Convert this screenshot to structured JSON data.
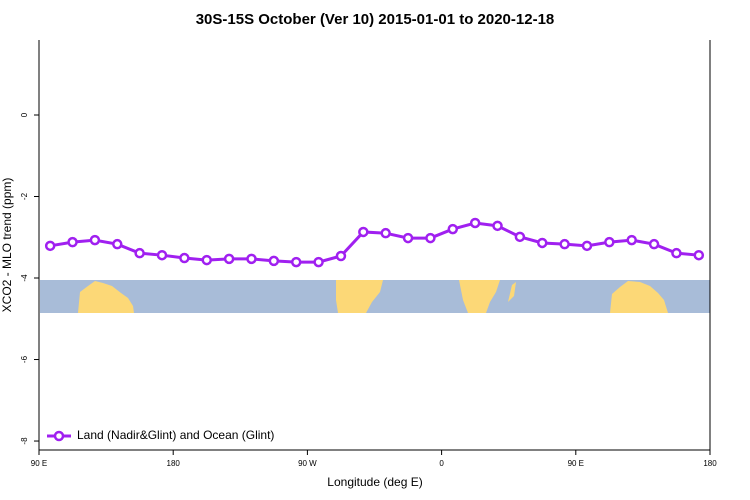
{
  "chart_data": {
    "type": "line",
    "title": "30S-15S October (Ver 10)   2015-01-01 to 2020-12-18",
    "x_label": "Longitude (deg E)",
    "y_label": "XCO2 - MLO trend (ppm)",
    "x": [
      97.5,
      112.5,
      127.5,
      142.5,
      157.5,
      172.5,
      187.5,
      202.5,
      217.5,
      232.5,
      247.5,
      262.5,
      277.5,
      292.5,
      307.5,
      322.5,
      337.5,
      352.5,
      367.5,
      382.5,
      397.5,
      412.5,
      427.5,
      442.5,
      457.5,
      472.5,
      487.5,
      502.5,
      517.5,
      532.5
    ],
    "series": [
      {
        "name": "Land (Nadir&Glint) and Ocean (Glint)",
        "color": "#a020f0",
        "values": [
          -3.21,
          -3.12,
          -3.07,
          -3.17,
          -3.39,
          -3.44,
          -3.51,
          -3.56,
          -3.53,
          -3.53,
          -3.58,
          -3.61,
          -3.61,
          -3.46,
          -2.87,
          -2.9,
          -3.02,
          -3.02,
          -2.8,
          -2.65,
          -2.72,
          -2.99,
          -3.14,
          -3.17,
          -3.21,
          -3.12,
          -3.07,
          -3.17,
          -3.39,
          -3.44
        ]
      }
    ],
    "xlim": [
      90,
      540
    ],
    "xticks": [
      {
        "value": 90,
        "label": "90 E"
      },
      {
        "value": 180,
        "label": "180"
      },
      {
        "value": 270,
        "label": "90 W"
      },
      {
        "value": 360,
        "label": "0"
      },
      {
        "value": 450,
        "label": "90 E"
      },
      {
        "value": 540,
        "label": "180"
      }
    ],
    "ylim": [
      -8.22,
      1.84
    ],
    "yticks": [
      0,
      -2,
      -4,
      -6,
      -8
    ],
    "legend": "bottom left"
  }
}
